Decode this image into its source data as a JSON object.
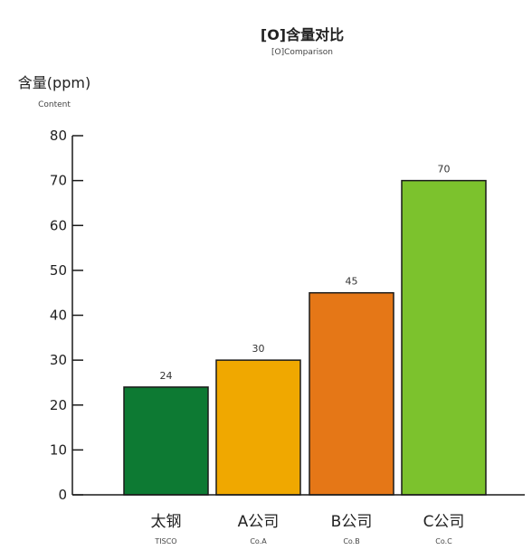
{
  "chart_data": {
    "type": "bar",
    "title": "[O]含量对比",
    "subtitle": "[O]Comparison",
    "ylabel": "含量(ppm)",
    "ylabel_sub": "Content",
    "ylim": [
      0,
      80
    ],
    "yticks": [
      0,
      10,
      20,
      30,
      40,
      50,
      60,
      70,
      80
    ],
    "categories": [
      "太钢",
      "A公司",
      "B公司",
      "C公司"
    ],
    "categories_sub": [
      "TISCO",
      "Co.A",
      "Co.B",
      "Co.C"
    ],
    "values": [
      24,
      30,
      45,
      70
    ],
    "bar_colors": [
      "#0d7a33",
      "#f0a800",
      "#e57717",
      "#7cc22d"
    ],
    "grid": false
  }
}
